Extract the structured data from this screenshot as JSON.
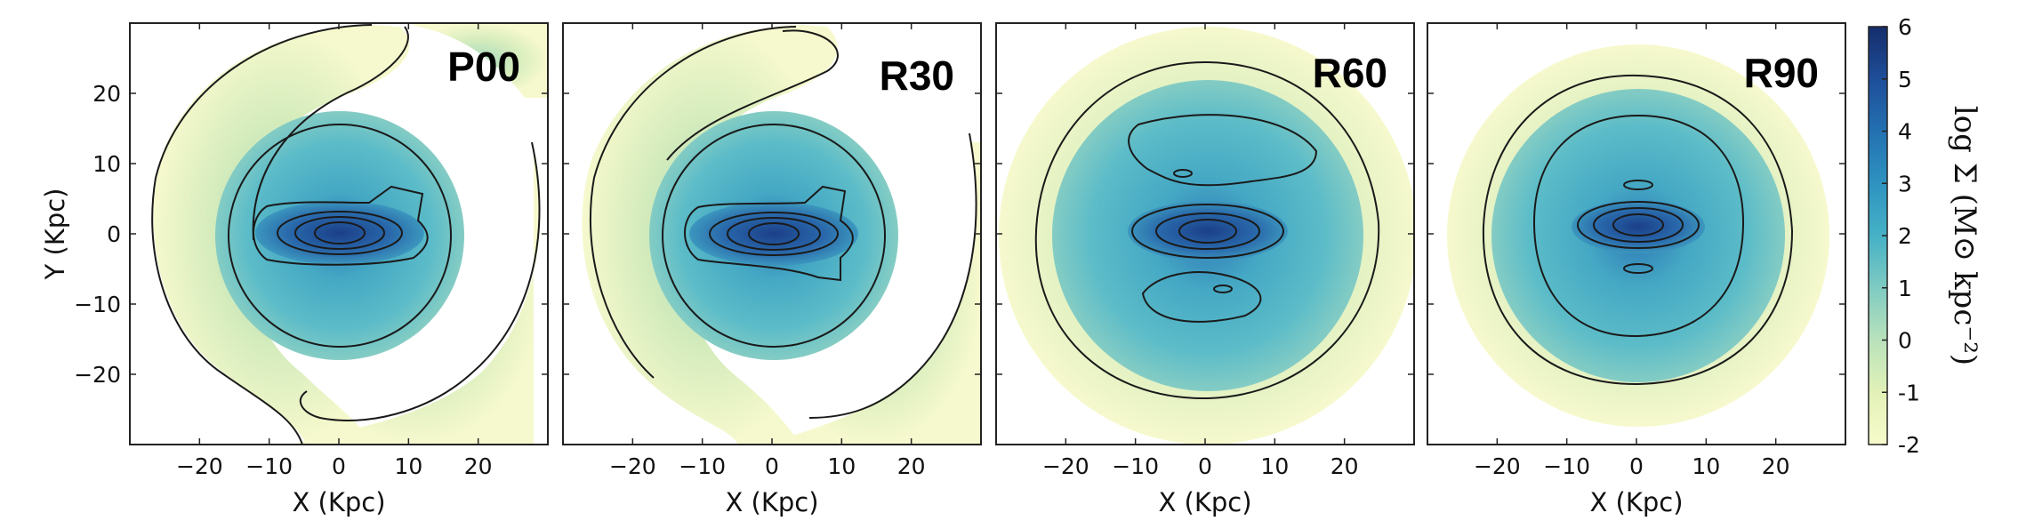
{
  "chart_data": {
    "type": "heatmap",
    "title": "",
    "xlabel": "X (Kpc)",
    "ylabel": "Y (Kpc)",
    "xlim": [
      -30,
      30
    ],
    "ylim": [
      -30,
      30
    ],
    "xticks": [
      -20,
      -10,
      0,
      10,
      20
    ],
    "xtick_labels": [
      "−20",
      "−10",
      "0",
      "10",
      "20"
    ],
    "yticks": [
      20,
      10,
      0,
      -10,
      -20
    ],
    "ytick_labels": [
      "20",
      "10",
      "0",
      "−10",
      "−20"
    ],
    "colorbar": {
      "label": "log Σ (M⊙ kpc⁻²)",
      "min": -2,
      "max": 6,
      "ticks": [
        6,
        5,
        4,
        3,
        2,
        1,
        0,
        -1,
        -2
      ],
      "tick_labels": [
        "6",
        "5",
        "4",
        "3",
        "2",
        "1",
        "0",
        "-1",
        "-2"
      ]
    },
    "panels": [
      {
        "label": "P00"
      },
      {
        "label": "R30"
      },
      {
        "label": "R60"
      },
      {
        "label": "R90"
      }
    ]
  },
  "colors": {
    "low": "#f4f8c8",
    "mid": "#3fb2c8",
    "high": "#16306f",
    "contour": "#1a1a1a"
  }
}
